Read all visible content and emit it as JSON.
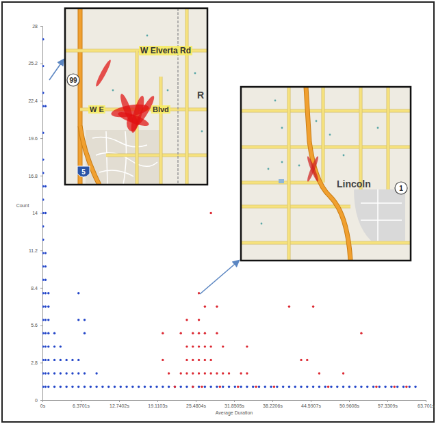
{
  "chart_data": {
    "type": "scatter",
    "x_label": "Average Duration",
    "y_label": "Count",
    "xlim": [
      0,
      63.701
    ],
    "ylim": [
      0,
      28
    ],
    "xticks": [
      {
        "value": 0,
        "label": "0s"
      },
      {
        "value": 6.3701,
        "label": "6.3701s"
      },
      {
        "value": 12.7402,
        "label": "12.7402s"
      },
      {
        "value": 19.1103,
        "label": "19.1103s"
      },
      {
        "value": 25.4804,
        "label": "25.4804s"
      },
      {
        "value": 31.8505,
        "label": "31.8505s"
      },
      {
        "value": 38.2206,
        "label": "38.2206s"
      },
      {
        "value": 44.5907,
        "label": "44.5907s"
      },
      {
        "value": 50.9608,
        "label": "50.9608s"
      },
      {
        "value": 57.3309,
        "label": "57.3309s"
      },
      {
        "value": 63.701,
        "label": "63.701s"
      }
    ],
    "yticks": [
      0,
      2.8,
      5.6,
      8.4,
      11.2,
      14,
      16.8,
      19.6,
      22.4,
      25.2,
      28
    ],
    "grid": false,
    "series": [
      {
        "color": "#2346c8",
        "marker": "circle",
        "x": [
          0.1,
          0.1,
          0.1,
          0.1,
          0.1,
          0.1,
          0.1,
          0.1,
          0.1,
          0.1,
          0.1,
          0.1,
          0.1,
          0.1,
          0.1,
          0.1,
          0.1,
          0.1,
          0.1,
          0.1,
          0.1,
          0.1,
          0.1,
          0.5,
          0.5,
          0.5,
          0.5,
          0.5,
          0.5,
          0.5,
          0.5,
          0.5,
          0.5,
          0.5,
          0.5,
          0.5,
          0.5,
          1,
          1,
          1,
          1,
          1,
          1,
          1,
          1,
          2,
          2,
          2,
          2,
          2,
          3,
          3,
          3,
          3,
          4,
          4,
          4,
          5,
          5,
          5,
          6,
          6,
          6,
          6,
          6,
          7,
          7,
          7,
          7,
          9,
          9,
          8,
          10,
          11,
          12,
          13,
          14,
          15,
          16,
          17,
          18,
          19,
          20,
          21,
          22,
          23,
          24,
          25,
          26,
          27,
          28,
          29,
          30,
          31,
          32,
          33,
          34,
          35,
          36,
          37,
          38,
          39,
          40,
          41,
          42,
          43,
          44,
          45,
          46,
          47,
          48,
          49,
          50,
          51,
          52,
          53,
          54,
          55,
          56,
          57,
          58,
          59,
          60,
          61,
          62
        ],
        "values": [
          1,
          2,
          3,
          4,
          5,
          6,
          7,
          8,
          9,
          10,
          11,
          12,
          13,
          14,
          15,
          16,
          17,
          18,
          20,
          22,
          23,
          25,
          27,
          1,
          2,
          3,
          4,
          5,
          6,
          7,
          8,
          9,
          10,
          11,
          14,
          16,
          22,
          1,
          2,
          3,
          4,
          5,
          6,
          7,
          8,
          1,
          2,
          3,
          4,
          5,
          1,
          2,
          3,
          4,
          1,
          2,
          3,
          1,
          2,
          3,
          1,
          2,
          3,
          6,
          8,
          1,
          2,
          5,
          6,
          1,
          2,
          1,
          1,
          1,
          1,
          1,
          1,
          1,
          1,
          1,
          1,
          1,
          1,
          1,
          1,
          1,
          1,
          1,
          1,
          1,
          1,
          1,
          1,
          1,
          1,
          1,
          1,
          1,
          1,
          1,
          1,
          1,
          1,
          1,
          1,
          1,
          1,
          1,
          1,
          1,
          1,
          1,
          1,
          1,
          1,
          1,
          1,
          1,
          1,
          1,
          1,
          1,
          1,
          1,
          1
        ]
      },
      {
        "color": "#dc2832",
        "marker": "circle",
        "x": [
          20,
          20,
          21,
          22,
          23,
          23,
          24,
          24,
          24,
          24,
          25,
          25,
          25,
          25,
          25,
          26,
          26,
          26,
          26,
          26,
          26,
          27,
          27,
          27,
          27,
          27,
          28,
          28,
          28,
          28,
          29,
          29,
          29,
          30,
          30,
          31,
          33,
          34,
          34,
          41,
          43,
          44,
          45,
          46,
          50,
          53,
          26.5,
          29.5,
          32.5,
          35.5,
          38.5,
          47.5,
          55.5,
          58.5,
          60.5
        ],
        "values": [
          3,
          5,
          2,
          1,
          2,
          5,
          2,
          3,
          4,
          6,
          1,
          2,
          3,
          4,
          5,
          2,
          3,
          4,
          5,
          6,
          8,
          2,
          3,
          4,
          5,
          7,
          2,
          3,
          4,
          14,
          2,
          5,
          7,
          2,
          4,
          2,
          2,
          2,
          4,
          7,
          3,
          3,
          7,
          2,
          2,
          5,
          1,
          1,
          1,
          1,
          1,
          1,
          1,
          1,
          1
        ]
      }
    ],
    "insets": [
      {
        "labels": [
          "W Elverta Rd",
          "W E",
          "Blvd",
          "99",
          "5",
          "R"
        ]
      },
      {
        "labels": [
          "Lincoln",
          "1"
        ]
      }
    ]
  }
}
